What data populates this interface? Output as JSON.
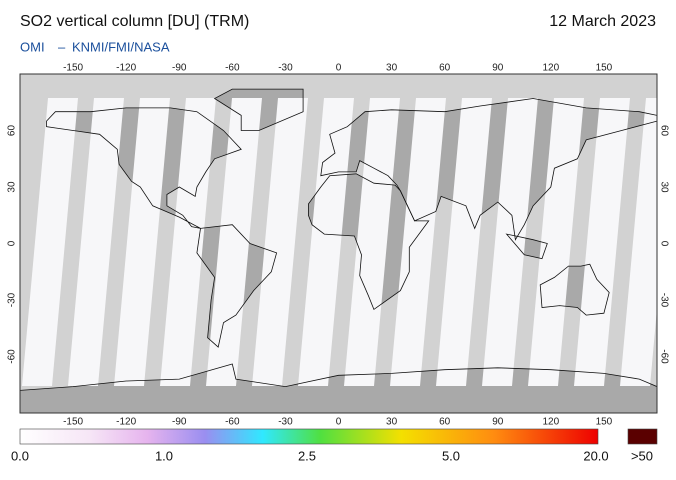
{
  "header": {
    "title": "SO2 vertical column [DU] (TRM)",
    "date": "12 March 2023",
    "instrument": "OMI",
    "separator": "–",
    "agency": "KNMI/FMI/NASA"
  },
  "map": {
    "lon_ticks": [
      -150,
      -120,
      -90,
      -60,
      -30,
      0,
      30,
      60,
      90,
      120,
      150
    ],
    "lat_ticks": [
      60,
      30,
      0,
      -30,
      -60
    ]
  },
  "legend": {
    "labels": [
      "0.0",
      "1.0",
      "2.5",
      "5.0",
      "20.0"
    ],
    "overflow": ">50"
  }
}
